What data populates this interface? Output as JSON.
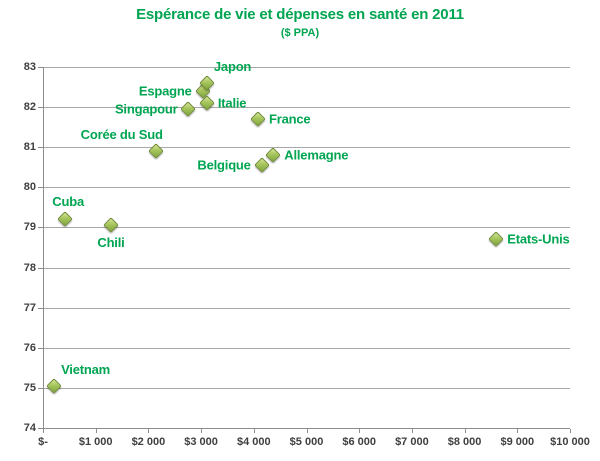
{
  "header": {
    "title": "Espérance de vie et dépenses en santé en 2011",
    "subtitle": "($ PPA)"
  },
  "colors": {
    "title_green": "#00A551",
    "point_label_green": "#00A551",
    "marker_fill": "#9ABB4F",
    "marker_border": "#6D8A33",
    "gridline_gray": "#A8A8A8",
    "axis_gray": "#8C8C8C",
    "tick_text_gray": "#3F3F3F",
    "background": "#FFFFFF"
  },
  "chart_data": {
    "type": "scatter",
    "title": "Espérance de vie et dépenses en santé en 2011",
    "subtitle": "($ PPA)",
    "xlabel": "",
    "ylabel": "",
    "xlim": [
      0,
      10000
    ],
    "ylim": [
      74,
      83
    ],
    "grid": "horizontal",
    "legend": "none",
    "marker_shape": "diamond",
    "x_ticks": [
      {
        "v": 0,
        "label": "$-"
      },
      {
        "v": 1000,
        "label": "$1 000"
      },
      {
        "v": 2000,
        "label": "$2 000"
      },
      {
        "v": 3000,
        "label": "$3 000"
      },
      {
        "v": 4000,
        "label": "$4 000"
      },
      {
        "v": 5000,
        "label": "$5 000"
      },
      {
        "v": 6000,
        "label": "$6 000"
      },
      {
        "v": 7000,
        "label": "$7 000"
      },
      {
        "v": 8000,
        "label": "$8 000"
      },
      {
        "v": 9000,
        "label": "$9 000"
      },
      {
        "v": 10000,
        "label": "$10 000"
      }
    ],
    "y_ticks": [
      {
        "v": 74,
        "label": "74"
      },
      {
        "v": 75,
        "label": "75"
      },
      {
        "v": 76,
        "label": "76"
      },
      {
        "v": 77,
        "label": "77"
      },
      {
        "v": 78,
        "label": "78"
      },
      {
        "v": 79,
        "label": "79"
      },
      {
        "v": 80,
        "label": "80"
      },
      {
        "v": 81,
        "label": "81"
      },
      {
        "v": 82,
        "label": "82"
      },
      {
        "v": 83,
        "label": "83"
      }
    ],
    "points": [
      {
        "name": "Vietnam",
        "x": 210,
        "y": 75.05,
        "label_pos": "top-right"
      },
      {
        "name": "Cuba",
        "x": 420,
        "y": 79.2,
        "label_pos": "top"
      },
      {
        "name": "Chili",
        "x": 1290,
        "y": 79.05,
        "label_pos": "bottom"
      },
      {
        "name": "Corée du Sud",
        "x": 2140,
        "y": 80.9,
        "label_pos": "top-left"
      },
      {
        "name": "Singapour",
        "x": 2760,
        "y": 81.95,
        "label_pos": "left"
      },
      {
        "name": "Espagne",
        "x": 3030,
        "y": 82.4,
        "label_pos": "left"
      },
      {
        "name": "Japon",
        "x": 3110,
        "y": 82.6,
        "label_pos": "top-right"
      },
      {
        "name": "Italie",
        "x": 3110,
        "y": 82.1,
        "label_pos": "right"
      },
      {
        "name": "France",
        "x": 4080,
        "y": 81.7,
        "label_pos": "right"
      },
      {
        "name": "Belgique",
        "x": 4150,
        "y": 80.55,
        "label_pos": "left"
      },
      {
        "name": "Allemagne",
        "x": 4370,
        "y": 80.8,
        "label_pos": "right"
      },
      {
        "name": "Etats-Unis",
        "x": 8600,
        "y": 78.7,
        "label_pos": "right"
      }
    ]
  }
}
